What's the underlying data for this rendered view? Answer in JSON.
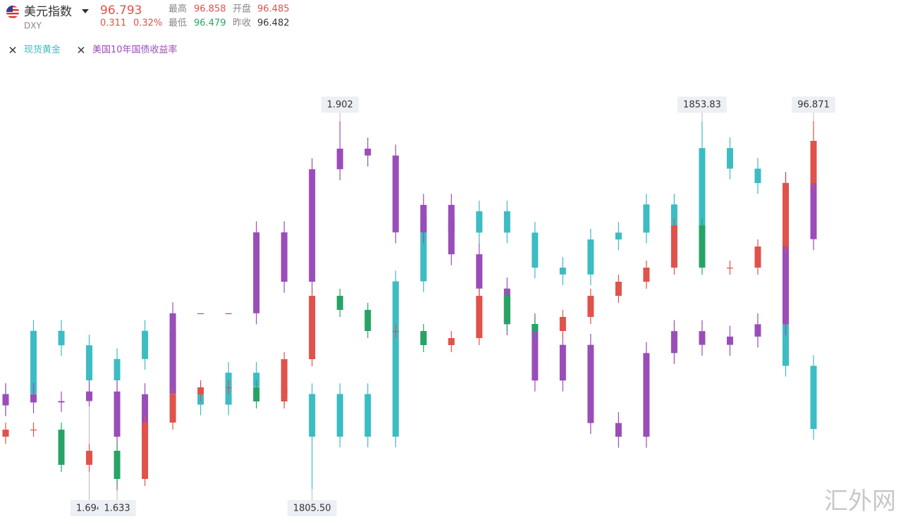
{
  "chart_data": {
    "type": "candlestick",
    "title": "美元指数",
    "subtitle": "DXY",
    "quote": {
      "last": 96.793,
      "change": 0.311,
      "change_pct": {
        "value": 0.32,
        "label": "0.32%"
      },
      "stats": [
        {
          "label": "最高",
          "value": 96.858
        },
        {
          "label": "开盘",
          "value": 96.485
        },
        {
          "label": "最低",
          "value": 96.479
        },
        {
          "label": "昨收",
          "value": 96.482
        }
      ]
    },
    "watermark": "汇外网",
    "series": [
      {
        "name": "现货黄金",
        "color": "#3cbcc3",
        "ylim": [
          1805.0,
          1860.5
        ],
        "labeled": [
          [
            11,
            2
          ],
          [
            25,
            1
          ]
        ],
        "values": [
          [
            1816.5,
            1819.4,
            1815.1,
            1818.0
          ],
          [
            1818.0,
            1827.7,
            1816.6,
            1826.3
          ],
          [
            1826.3,
            1827.7,
            1823.0,
            1824.4
          ],
          [
            1824.4,
            1825.8,
            1818.4,
            1819.8
          ],
          [
            1819.8,
            1824.0,
            1818.4,
            1822.6
          ],
          [
            1822.6,
            1827.7,
            1821.2,
            1826.3
          ],
          [
            1826.3,
            1827.7,
            1816.6,
            1818.0
          ],
          [
            1818.0,
            1819.4,
            1815.2,
            1816.6
          ],
          [
            1816.6,
            1822.2,
            1815.2,
            1820.8
          ],
          [
            1820.8,
            1822.2,
            1817.5,
            1818.9
          ],
          [
            1818.9,
            1820.3,
            1816.6,
            1818.0
          ],
          [
            1818.0,
            1819.4,
            1805.5,
            1812.4
          ],
          [
            1812.4,
            1819.4,
            1811.0,
            1818.0
          ],
          [
            1818.0,
            1819.4,
            1811.0,
            1812.4
          ],
          [
            1812.4,
            1834.2,
            1811.0,
            1832.8
          ],
          [
            1832.8,
            1842.5,
            1831.4,
            1841.1
          ],
          [
            1841.1,
            1842.5,
            1837.8,
            1839.2
          ],
          [
            1839.2,
            1843.4,
            1837.8,
            1842.0
          ],
          [
            1842.0,
            1843.4,
            1837.8,
            1839.2
          ],
          [
            1839.2,
            1840.6,
            1833.2,
            1834.6
          ],
          [
            1834.6,
            1836.0,
            1832.3,
            1833.7
          ],
          [
            1833.7,
            1839.7,
            1832.3,
            1838.3
          ],
          [
            1838.3,
            1840.6,
            1836.9,
            1839.2
          ],
          [
            1839.2,
            1844.3,
            1837.8,
            1842.9
          ],
          [
            1842.9,
            1844.3,
            1837.8,
            1839.2
          ],
          [
            1839.2,
            1853.83,
            1837.8,
            1850.3
          ],
          [
            1850.3,
            1851.7,
            1846.2,
            1847.6
          ],
          [
            1847.6,
            1849.0,
            1844.3,
            1845.7
          ],
          [
            1845.7,
            1847.1,
            1820.3,
            1821.7
          ],
          [
            1821.7,
            1823.1,
            1812.0,
            1813.4
          ]
        ],
        "value_labels": [
          null,
          null,
          null,
          null,
          null,
          null,
          null,
          null,
          null,
          null,
          null,
          [
            null,
            null,
            "1805.50",
            null
          ],
          null,
          null,
          null,
          null,
          null,
          null,
          null,
          null,
          null,
          null,
          null,
          null,
          null,
          null,
          null,
          null,
          null,
          null
        ]
      },
      {
        "name": "美国10年国债收益率",
        "color": "#9a4db8",
        "ylim": [
          1.631,
          1.939
        ],
        "labeled": [
          [
            3,
            2
          ],
          [
            4,
            2
          ],
          [
            12,
            1
          ]
        ],
        "values": [
          [
            1.695,
            1.711,
            1.687,
            1.703
          ],
          [
            1.703,
            1.711,
            1.689,
            1.697
          ],
          [
            1.697,
            1.705,
            1.69,
            1.698
          ],
          [
            1.698,
            1.713,
            1.694,
            1.705
          ],
          [
            1.705,
            1.713,
            1.633,
            1.672
          ],
          [
            1.672,
            1.711,
            1.664,
            1.703
          ],
          [
            1.703,
            1.77,
            1.695,
            1.762
          ],
          [
            1.762,
            1.762,
            1.762,
            1.762
          ],
          [
            1.762,
            1.762,
            1.762,
            1.762
          ],
          [
            1.762,
            1.829,
            1.754,
            1.821
          ],
          [
            1.821,
            1.829,
            1.777,
            1.785
          ],
          [
            1.785,
            1.875,
            1.777,
            1.867
          ],
          [
            1.867,
            1.902,
            1.859,
            1.882
          ],
          [
            1.882,
            1.89,
            1.869,
            1.877
          ],
          [
            1.877,
            1.885,
            1.813,
            1.821
          ],
          [
            1.821,
            1.849,
            1.813,
            1.841
          ],
          [
            1.841,
            1.849,
            1.797,
            1.805
          ],
          [
            1.805,
            1.813,
            1.772,
            1.78
          ],
          [
            1.78,
            1.788,
            1.746,
            1.754
          ],
          [
            1.754,
            1.762,
            1.705,
            1.713
          ],
          [
            1.713,
            1.747,
            1.705,
            1.739
          ],
          [
            1.739,
            1.747,
            1.674,
            1.682
          ],
          [
            1.682,
            1.69,
            1.664,
            1.672
          ],
          [
            1.672,
            1.741,
            1.664,
            1.733
          ],
          [
            1.733,
            1.757,
            1.725,
            1.749
          ],
          [
            1.749,
            1.757,
            1.731,
            1.739
          ],
          [
            1.739,
            1.753,
            1.731,
            1.745
          ],
          [
            1.745,
            1.762,
            1.737,
            1.754
          ],
          [
            1.754,
            1.865,
            1.746,
            1.857
          ],
          [
            1.857,
            1.865,
            1.808,
            1.816
          ]
        ]
      },
      {
        "up_color": "#e0524a",
        "down_color": "#27a465",
        "ylim": [
          95.815,
          97.015
        ],
        "labeled": [
          [
            29,
            1
          ]
        ],
        "values": [
          [
            95.975,
            96.015,
            95.955,
            95.995
          ],
          [
            95.995,
            96.015,
            95.975,
            95.995
          ],
          [
            95.995,
            96.015,
            95.875,
            95.895
          ],
          [
            95.895,
            95.955,
            95.875,
            95.935
          ],
          [
            95.935,
            95.955,
            95.835,
            95.855
          ],
          [
            95.855,
            96.035,
            95.835,
            96.015
          ],
          [
            96.015,
            96.115,
            95.995,
            96.095
          ],
          [
            96.095,
            96.135,
            96.075,
            96.115
          ],
          [
            96.115,
            96.135,
            96.095,
            96.115
          ],
          [
            96.115,
            96.135,
            96.055,
            96.075
          ],
          [
            96.075,
            96.215,
            96.055,
            96.195
          ],
          [
            96.195,
            96.395,
            96.175,
            96.375
          ],
          [
            96.375,
            96.395,
            96.315,
            96.335
          ],
          [
            96.335,
            96.355,
            96.255,
            96.275
          ],
          [
            96.275,
            96.295,
            96.255,
            96.275
          ],
          [
            96.275,
            96.295,
            96.215,
            96.235
          ],
          [
            96.235,
            96.275,
            96.215,
            96.255
          ],
          [
            96.255,
            96.395,
            96.235,
            96.375
          ],
          [
            96.375,
            96.395,
            96.275,
            96.295
          ],
          [
            96.295,
            96.315,
            96.255,
            96.275
          ],
          [
            96.275,
            96.335,
            96.255,
            96.315
          ],
          [
            96.315,
            96.395,
            96.295,
            96.375
          ],
          [
            96.375,
            96.435,
            96.355,
            96.415
          ],
          [
            96.415,
            96.475,
            96.395,
            96.455
          ],
          [
            96.455,
            96.595,
            96.435,
            96.575
          ],
          [
            96.575,
            96.595,
            96.435,
            96.455
          ],
          [
            96.455,
            96.475,
            96.435,
            96.455
          ],
          [
            96.455,
            96.535,
            96.435,
            96.515
          ],
          [
            96.515,
            96.715,
            96.495,
            96.695
          ],
          [
            96.695,
            96.871,
            96.675,
            96.815
          ]
        ]
      }
    ]
  }
}
